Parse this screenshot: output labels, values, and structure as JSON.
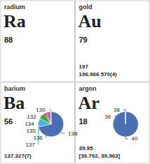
{
  "chart_data": [
    {
      "type": "text",
      "title": "radium",
      "annotations": [
        "Ra",
        "88"
      ]
    },
    {
      "type": "text",
      "title": "gold",
      "annotations": [
        "Au",
        "79",
        "197",
        "196.966 570(4)"
      ]
    },
    {
      "type": "pie",
      "title": "barium",
      "annotations": [
        "Ba",
        "56",
        "137.327(7)"
      ],
      "categories": [
        "138",
        "137",
        "136",
        "135",
        "134",
        "132",
        "130"
      ],
      "values": [
        71.7,
        11.2,
        7.85,
        2.42,
        6.59,
        0.106,
        0.101
      ],
      "colors": [
        "#4a6fb5",
        "#40b8d8",
        "#40a040",
        "#cc3030",
        "#c060c0",
        "#d88080",
        "#d88080"
      ]
    },
    {
      "type": "pie",
      "title": "argon",
      "annotations": [
        "Ar",
        "18",
        "39.95",
        "[39.792, 39.963]"
      ],
      "categories": [
        "40",
        "36",
        "38"
      ],
      "values": [
        99.6,
        0.063,
        0.337
      ],
      "color": "#4a6fb5"
    }
  ]
}
